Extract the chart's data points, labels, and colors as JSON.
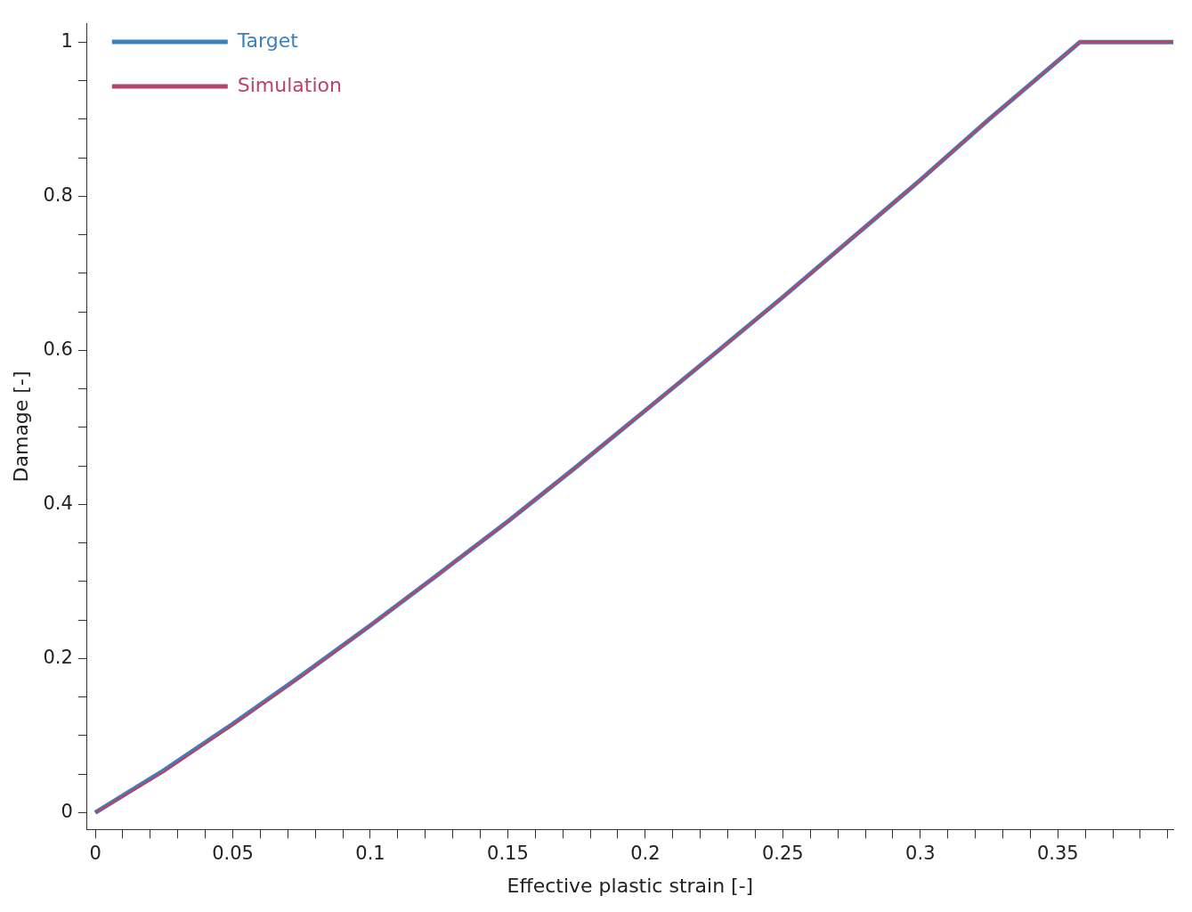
{
  "chart_data": {
    "type": "line",
    "xlabel": "Effective plastic strain [-]",
    "ylabel": "Damage [-]",
    "x": [
      0,
      0.025,
      0.05,
      0.075,
      0.1,
      0.125,
      0.15,
      0.175,
      0.2,
      0.225,
      0.25,
      0.275,
      0.3,
      0.325,
      0.358,
      0.392
    ],
    "series": [
      {
        "name": "Target",
        "color": "#3d7fbf",
        "values": [
          0,
          0.055,
          0.115,
          0.178,
          0.243,
          0.31,
          0.378,
          0.449,
          0.522,
          0.595,
          0.669,
          0.745,
          0.821,
          0.9,
          1,
          1
        ]
      },
      {
        "name": "Simulation",
        "color": "#b5456a",
        "values": [
          0,
          0.053,
          0.114,
          0.177,
          0.243,
          0.31,
          0.378,
          0.449,
          0.522,
          0.595,
          0.669,
          0.745,
          0.821,
          0.9,
          1,
          1
        ]
      }
    ],
    "xlim": [
      -0.003,
      0.392
    ],
    "ylim": [
      -0.022,
      1.024
    ],
    "xticks": [
      0,
      {
        "value": 0.01,
        "label": null
      },
      {
        "value": 0.02,
        "label": null
      },
      {
        "value": 0.03,
        "label": null
      },
      {
        "value": 0.04,
        "label": null
      },
      0.05,
      {
        "value": 0.06,
        "label": null
      },
      {
        "value": 0.07,
        "label": null
      },
      {
        "value": 0.08,
        "label": null
      },
      {
        "value": 0.09,
        "label": null
      },
      0.1,
      {
        "value": 0.11,
        "label": null
      },
      {
        "value": 0.12,
        "label": null
      },
      {
        "value": 0.13,
        "label": null
      },
      {
        "value": 0.14,
        "label": null
      },
      0.15,
      {
        "value": 0.16,
        "label": null
      },
      {
        "value": 0.17,
        "label": null
      },
      {
        "value": 0.18,
        "label": null
      },
      {
        "value": 0.19,
        "label": null
      },
      0.2,
      {
        "value": 0.21,
        "label": null
      },
      {
        "value": 0.22,
        "label": null
      },
      {
        "value": 0.23,
        "label": null
      },
      {
        "value": 0.24,
        "label": null
      },
      0.25,
      {
        "value": 0.26,
        "label": null
      },
      {
        "value": 0.27,
        "label": null
      },
      {
        "value": 0.28,
        "label": null
      },
      {
        "value": 0.29,
        "label": null
      },
      0.3,
      {
        "value": 0.31,
        "label": null
      },
      {
        "value": 0.32,
        "label": null
      },
      {
        "value": 0.33,
        "label": null
      },
      {
        "value": 0.34,
        "label": null
      },
      0.35,
      {
        "value": 0.36,
        "label": null
      },
      {
        "value": 0.37,
        "label": null
      },
      {
        "value": 0.38,
        "label": null
      },
      {
        "value": 0.39,
        "label": null
      }
    ],
    "yticks": [
      0,
      {
        "value": 0.05,
        "label": null
      },
      {
        "value": 0.1,
        "label": null
      },
      {
        "value": 0.15,
        "label": null
      },
      0.2,
      {
        "value": 0.25,
        "label": null
      },
      {
        "value": 0.3,
        "label": null
      },
      {
        "value": 0.35,
        "label": null
      },
      0.4,
      {
        "value": 0.45,
        "label": null
      },
      {
        "value": 0.5,
        "label": null
      },
      {
        "value": 0.55,
        "label": null
      },
      0.6,
      {
        "value": 0.65,
        "label": null
      },
      {
        "value": 0.7,
        "label": null
      },
      {
        "value": 0.75,
        "label": null
      },
      0.8,
      {
        "value": 0.85,
        "label": null
      },
      {
        "value": 0.9,
        "label": null
      },
      {
        "value": 0.95,
        "label": null
      },
      1
    ],
    "grid": false,
    "legend": "top left",
    "marker": "none",
    "line_style": "solid"
  }
}
